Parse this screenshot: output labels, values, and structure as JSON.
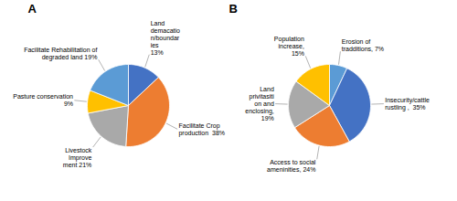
{
  "chart_data": [
    {
      "type": "pie",
      "title": "A",
      "categories": [
        "Land\ndemacatio\nn/boundar\nies\n13%",
        "Facilitate Crop\nproduction  38%",
        "Livestock\nImprove\nment 21%",
        "Pasture conservation\n9%",
        "Facilitate Rehabilitation of\ndegraded land 19%"
      ],
      "values": [
        13,
        38,
        21,
        9,
        19
      ],
      "colors": [
        "#4472C4",
        "#ED7D31",
        "#A9A9A9",
        "#FFC000",
        "#5B9BD5"
      ]
    },
    {
      "type": "pie",
      "title": "B",
      "categories": [
        "Erosion of\ntradditions, 7%",
        "Insecurity/cattle\nrustling ,  35%",
        "Access to social\nameninities, 24%",
        "Land\nprivitasiti\non and\nenclosing,\n19%",
        "Population\nincrease,\n15%"
      ],
      "values": [
        7,
        35,
        24,
        19,
        15
      ],
      "colors": [
        "#5B9BD5",
        "#4472C4",
        "#ED7D31",
        "#A9A9A9",
        "#FFC000"
      ]
    }
  ]
}
